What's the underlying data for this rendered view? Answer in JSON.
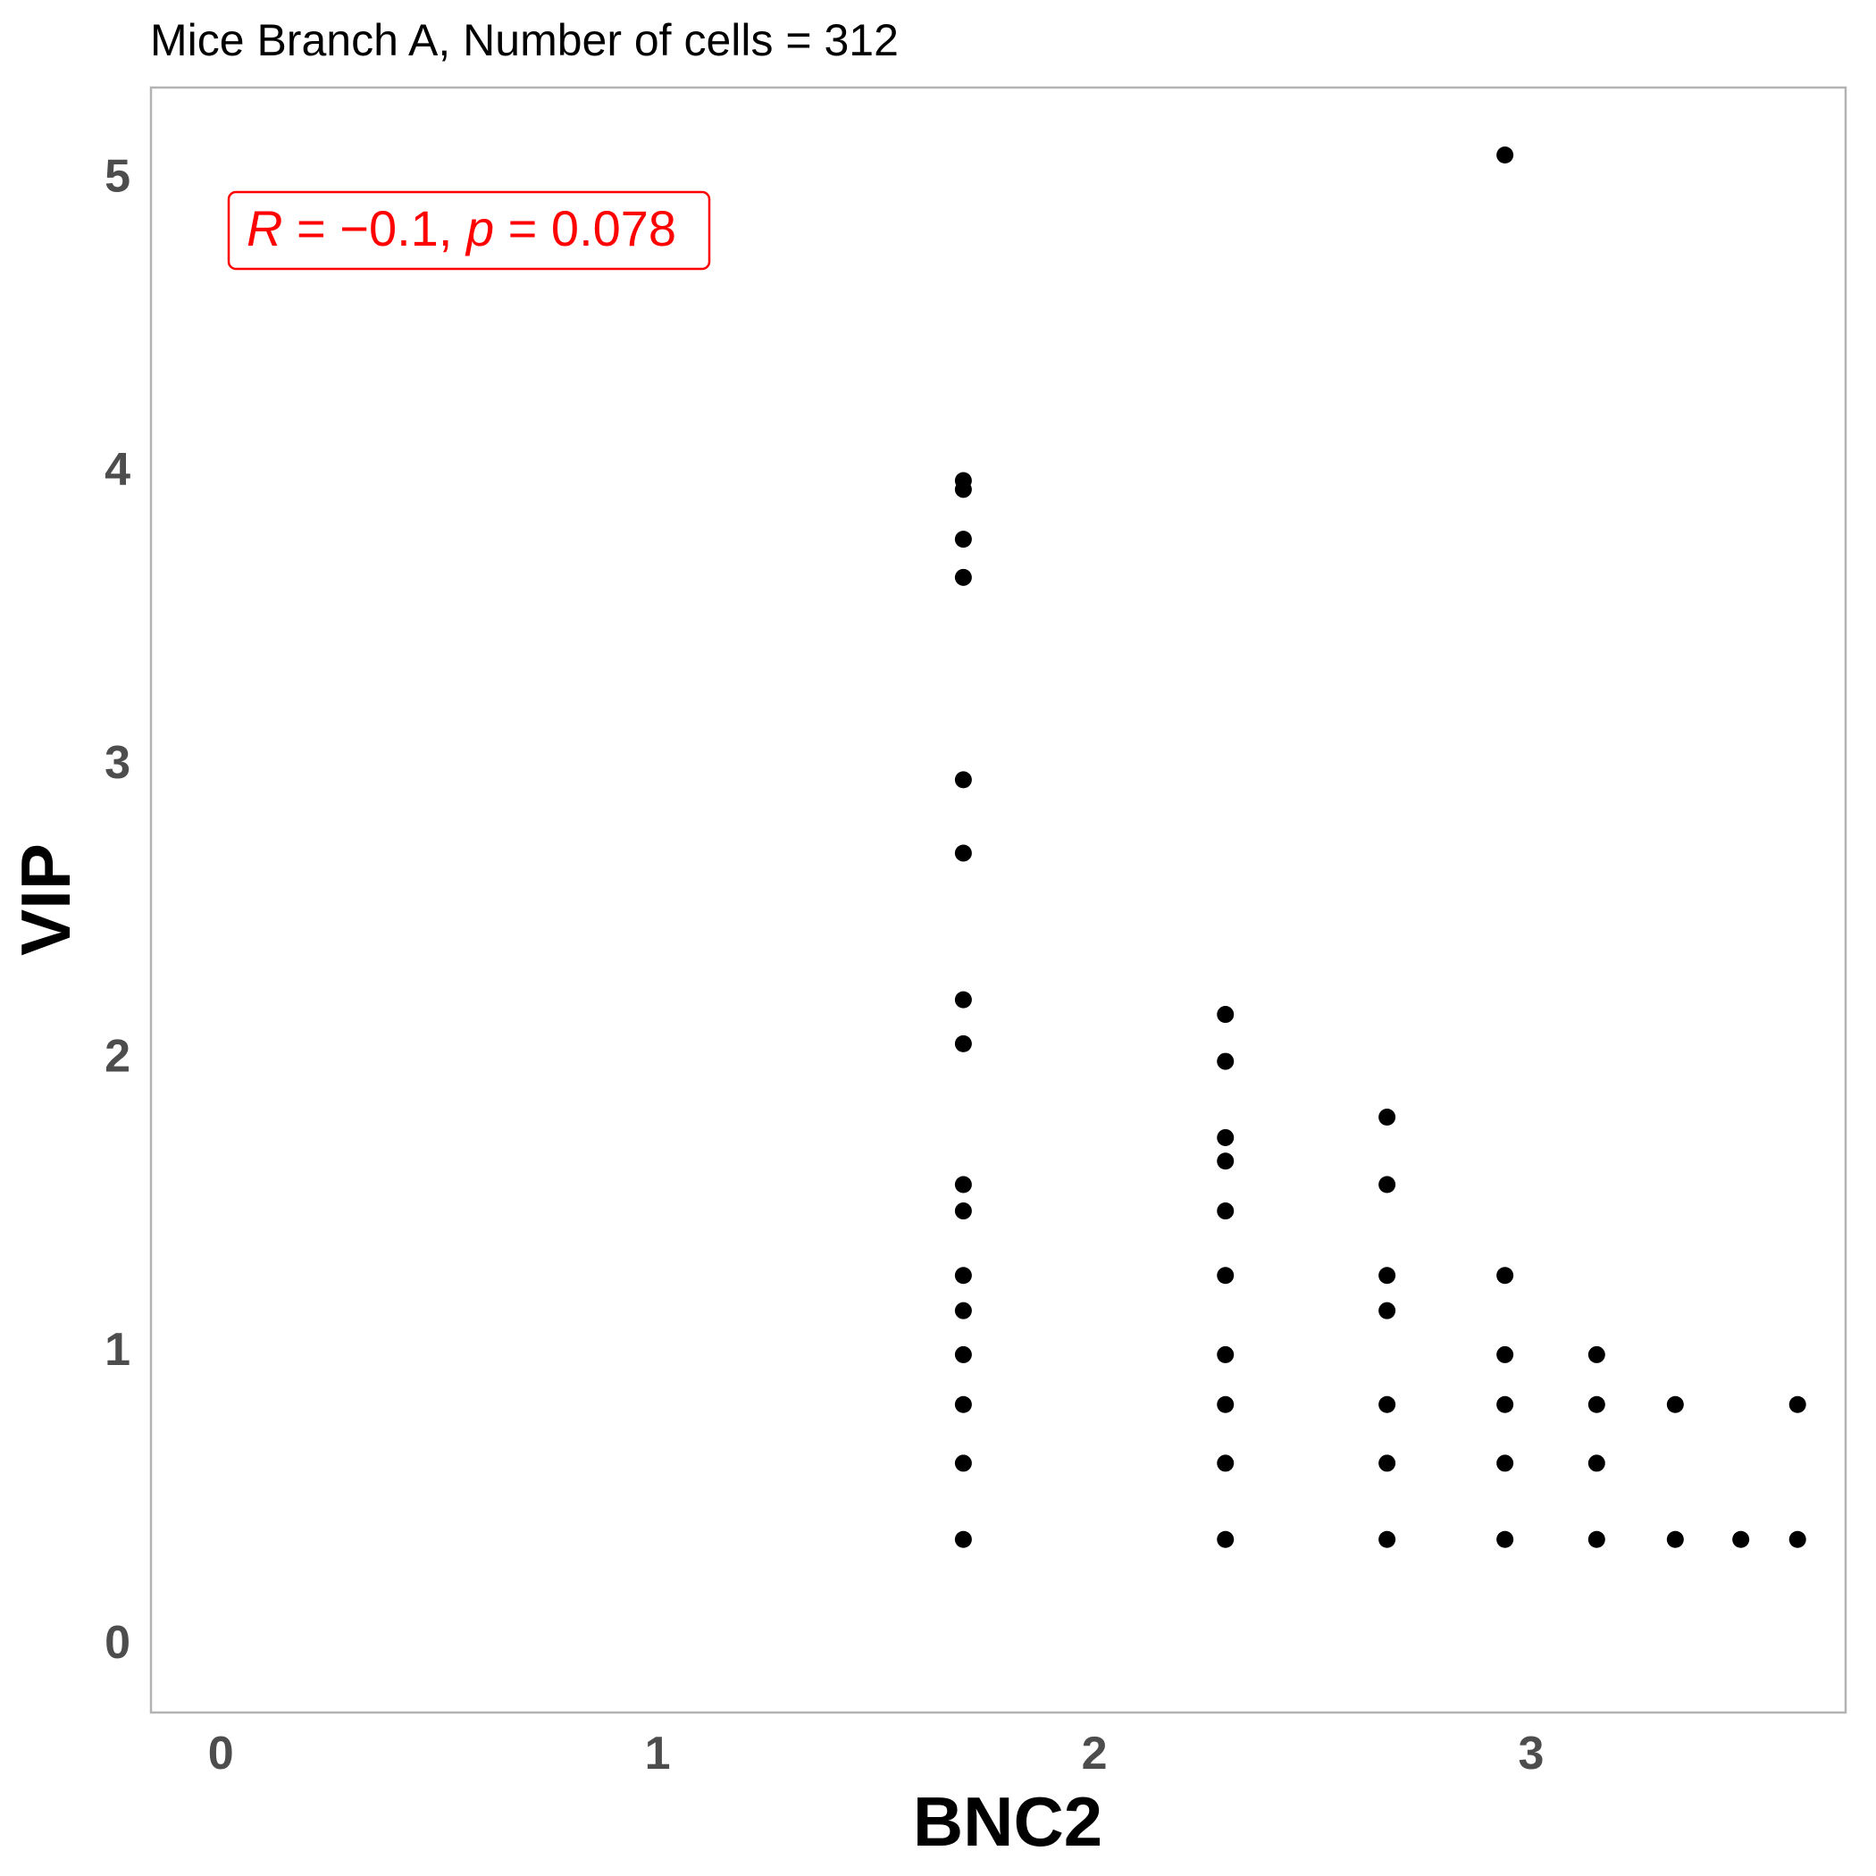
{
  "chart_data": {
    "type": "scatter",
    "title": "Mice Branch A, Number of cells = 312",
    "xlabel": "BNC2",
    "ylabel": "VIP",
    "xlim": [
      -0.16,
      3.72
    ],
    "ylim": [
      -0.24,
      5.3
    ],
    "x_ticks": [
      "0",
      "1",
      "2",
      "3"
    ],
    "y_ticks": [
      "0",
      "1",
      "2",
      "3",
      "4",
      "5"
    ],
    "grid": false,
    "annotation": {
      "r_symbol": "R",
      "r_value": " = −0.1, ",
      "p_symbol": "p",
      "p_value": " = 0.078",
      "color": "#ff0000",
      "placement": "top-left"
    },
    "point_color": "#000000",
    "points": [
      {
        "x": 1.7,
        "y": 3.96
      },
      {
        "x": 1.7,
        "y": 3.93
      },
      {
        "x": 1.7,
        "y": 3.76
      },
      {
        "x": 1.7,
        "y": 3.63
      },
      {
        "x": 1.7,
        "y": 2.94
      },
      {
        "x": 1.7,
        "y": 2.69
      },
      {
        "x": 1.7,
        "y": 2.19
      },
      {
        "x": 1.7,
        "y": 2.04
      },
      {
        "x": 1.7,
        "y": 1.56
      },
      {
        "x": 1.7,
        "y": 1.47
      },
      {
        "x": 1.7,
        "y": 1.25
      },
      {
        "x": 1.7,
        "y": 1.13
      },
      {
        "x": 1.7,
        "y": 0.98
      },
      {
        "x": 1.7,
        "y": 0.81
      },
      {
        "x": 1.7,
        "y": 0.61
      },
      {
        "x": 1.7,
        "y": 0.35
      },
      {
        "x": 2.3,
        "y": 2.14
      },
      {
        "x": 2.3,
        "y": 1.98
      },
      {
        "x": 2.3,
        "y": 1.72
      },
      {
        "x": 2.3,
        "y": 1.64
      },
      {
        "x": 2.3,
        "y": 1.47
      },
      {
        "x": 2.3,
        "y": 1.25
      },
      {
        "x": 2.3,
        "y": 0.98
      },
      {
        "x": 2.3,
        "y": 0.81
      },
      {
        "x": 2.3,
        "y": 0.61
      },
      {
        "x": 2.3,
        "y": 0.35
      },
      {
        "x": 2.67,
        "y": 1.79
      },
      {
        "x": 2.67,
        "y": 1.56
      },
      {
        "x": 2.67,
        "y": 1.25
      },
      {
        "x": 2.67,
        "y": 1.13
      },
      {
        "x": 2.67,
        "y": 0.81
      },
      {
        "x": 2.67,
        "y": 0.61
      },
      {
        "x": 2.67,
        "y": 0.35
      },
      {
        "x": 2.94,
        "y": 5.07
      },
      {
        "x": 2.94,
        "y": 1.25
      },
      {
        "x": 2.94,
        "y": 0.98
      },
      {
        "x": 2.94,
        "y": 0.81
      },
      {
        "x": 2.94,
        "y": 0.61
      },
      {
        "x": 2.94,
        "y": 0.35
      },
      {
        "x": 3.15,
        "y": 0.98
      },
      {
        "x": 3.15,
        "y": 0.81
      },
      {
        "x": 3.15,
        "y": 0.61
      },
      {
        "x": 3.15,
        "y": 0.35
      },
      {
        "x": 3.33,
        "y": 0.81
      },
      {
        "x": 3.33,
        "y": 0.35
      },
      {
        "x": 3.48,
        "y": 0.35
      },
      {
        "x": 3.61,
        "y": 0.81
      },
      {
        "x": 3.61,
        "y": 0.35
      }
    ]
  }
}
